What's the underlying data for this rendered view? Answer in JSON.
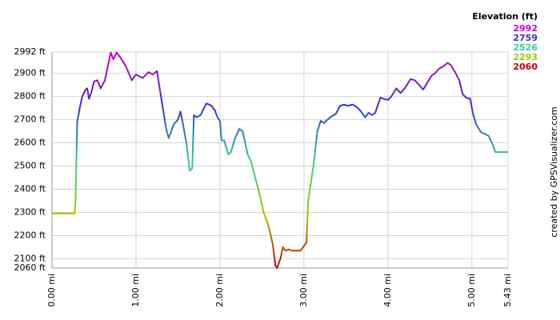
{
  "chart_data": {
    "type": "line",
    "color_scale_title": "Elevation (ft)",
    "color_scale": [
      {
        "value": 2992,
        "color": "#cc00cc"
      },
      {
        "value": 2759,
        "color": "#3333cc"
      },
      {
        "value": 2526,
        "color": "#33cc99"
      },
      {
        "value": 2293,
        "color": "#99cc00"
      },
      {
        "value": 2060,
        "color": "#cc0000"
      }
    ],
    "credit": "created by GPSVisualizer.com",
    "grid": true,
    "xlim": [
      0,
      5.43
    ],
    "xticks": [
      {
        "value": 0,
        "label": "0.00 mi"
      },
      {
        "value": 1,
        "label": "1.00 mi"
      },
      {
        "value": 2,
        "label": "2.00 mi"
      },
      {
        "value": 3,
        "label": "3.00 mi"
      },
      {
        "value": 4,
        "label": "4.00 mi"
      },
      {
        "value": 5,
        "label": "5.00 mi"
      },
      {
        "value": 5.43,
        "label": "5.43 mi"
      }
    ],
    "ylim": [
      2060,
      2992
    ],
    "yticks": [
      {
        "value": 2060,
        "label": "2060 ft"
      },
      {
        "value": 2100,
        "label": "2100 ft"
      },
      {
        "value": 2200,
        "label": "2200 ft"
      },
      {
        "value": 2300,
        "label": "2300 ft"
      },
      {
        "value": 2400,
        "label": "2400 ft"
      },
      {
        "value": 2500,
        "label": "2500 ft"
      },
      {
        "value": 2600,
        "label": "2600 ft"
      },
      {
        "value": 2700,
        "label": "2700 ft"
      },
      {
        "value": 2800,
        "label": "2800 ft"
      },
      {
        "value": 2900,
        "label": "2900 ft"
      },
      {
        "value": 2992,
        "label": "2992 ft"
      }
    ],
    "x": [
      0,
      0.27,
      0.28,
      0.3,
      0.33,
      0.36,
      0.4,
      0.42,
      0.44,
      0.47,
      0.5,
      0.54,
      0.58,
      0.63,
      0.67,
      0.7,
      0.73,
      0.77,
      0.82,
      0.88,
      0.95,
      1.0,
      1.05,
      1.08,
      1.15,
      1.2,
      1.25,
      1.28,
      1.32,
      1.36,
      1.39,
      1.45,
      1.5,
      1.53,
      1.56,
      1.6,
      1.64,
      1.67,
      1.69,
      1.72,
      1.77,
      1.81,
      1.84,
      1.9,
      1.94,
      1.97,
      2.0,
      2.02,
      2.05,
      2.1,
      2.13,
      2.18,
      2.23,
      2.27,
      2.3,
      2.33,
      2.37,
      2.42,
      2.47,
      2.52,
      2.58,
      2.63,
      2.66,
      2.68,
      2.72,
      2.75,
      2.78,
      2.82,
      2.86,
      2.9,
      2.96,
      3.0,
      3.03,
      3.05,
      3.08,
      3.12,
      3.16,
      3.2,
      3.24,
      3.28,
      3.33,
      3.38,
      3.43,
      3.48,
      3.52,
      3.58,
      3.63,
      3.68,
      3.73,
      3.77,
      3.81,
      3.85,
      3.91,
      3.95,
      4.0,
      4.04,
      4.1,
      4.15,
      4.2,
      4.27,
      4.32,
      4.37,
      4.42,
      4.47,
      4.52,
      4.56,
      4.61,
      4.66,
      4.71,
      4.75,
      4.8,
      4.85,
      4.89,
      4.93,
      4.98,
      5.01,
      5.05,
      5.11,
      5.15,
      5.2,
      5.25,
      5.28,
      5.43
    ],
    "values": [
      2295,
      2295,
      2350,
      2690,
      2750,
      2800,
      2830,
      2835,
      2790,
      2820,
      2865,
      2870,
      2835,
      2870,
      2940,
      2990,
      2960,
      2990,
      2965,
      2930,
      2870,
      2895,
      2885,
      2880,
      2905,
      2895,
      2910,
      2840,
      2750,
      2660,
      2620,
      2680,
      2700,
      2735,
      2680,
      2600,
      2480,
      2490,
      2720,
      2710,
      2720,
      2750,
      2770,
      2760,
      2740,
      2710,
      2695,
      2610,
      2610,
      2550,
      2560,
      2620,
      2660,
      2650,
      2600,
      2550,
      2520,
      2450,
      2380,
      2300,
      2240,
      2160,
      2070,
      2060,
      2100,
      2150,
      2135,
      2140,
      2135,
      2135,
      2135,
      2155,
      2170,
      2350,
      2420,
      2520,
      2650,
      2695,
      2685,
      2700,
      2715,
      2725,
      2760,
      2765,
      2760,
      2765,
      2755,
      2735,
      2710,
      2730,
      2720,
      2730,
      2795,
      2790,
      2785,
      2800,
      2835,
      2815,
      2835,
      2875,
      2870,
      2850,
      2830,
      2860,
      2890,
      2900,
      2920,
      2930,
      2945,
      2935,
      2905,
      2870,
      2810,
      2795,
      2790,
      2730,
      2680,
      2645,
      2640,
      2630,
      2590,
      2560,
      2560
    ]
  }
}
